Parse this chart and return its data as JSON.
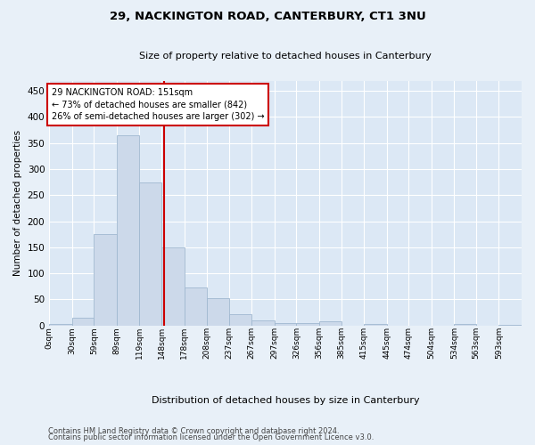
{
  "title": "29, NACKINGTON ROAD, CANTERBURY, CT1 3NU",
  "subtitle": "Size of property relative to detached houses in Canterbury",
  "xlabel": "Distribution of detached houses by size in Canterbury",
  "ylabel": "Number of detached properties",
  "bar_color": "#ccd9ea",
  "bar_edge_color": "#a0b8d0",
  "background_color": "#dce8f5",
  "grid_color": "#ffffff",
  "property_line_x": 151,
  "property_line_color": "#cc0000",
  "annotation_line1": "29 NACKINGTON ROAD: 151sqm",
  "annotation_line2": "← 73% of detached houses are smaller (842)",
  "annotation_line3": "26% of semi-detached houses are larger (302) →",
  "annotation_box_color": "#cc0000",
  "footer_line1": "Contains HM Land Registry data © Crown copyright and database right 2024.",
  "footer_line2": "Contains public sector information licensed under the Open Government Licence v3.0.",
  "bin_labels": [
    "0sqm",
    "30sqm",
    "59sqm",
    "89sqm",
    "119sqm",
    "148sqm",
    "178sqm",
    "208sqm",
    "237sqm",
    "267sqm",
    "297sqm",
    "326sqm",
    "356sqm",
    "385sqm",
    "415sqm",
    "445sqm",
    "474sqm",
    "504sqm",
    "534sqm",
    "563sqm",
    "593sqm"
  ],
  "bin_edges": [
    0,
    30,
    59,
    89,
    119,
    148,
    178,
    208,
    237,
    267,
    297,
    326,
    356,
    385,
    415,
    445,
    474,
    504,
    534,
    563,
    593
  ],
  "bar_heights": [
    2,
    15,
    175,
    365,
    275,
    150,
    72,
    53,
    22,
    10,
    5,
    5,
    8,
    0,
    2,
    0,
    0,
    0,
    2,
    0,
    1
  ],
  "ylim": [
    0,
    470
  ],
  "yticks": [
    0,
    50,
    100,
    150,
    200,
    250,
    300,
    350,
    400,
    450
  ],
  "fig_width": 6.0,
  "fig_height": 5.0,
  "fig_dpi": 100
}
